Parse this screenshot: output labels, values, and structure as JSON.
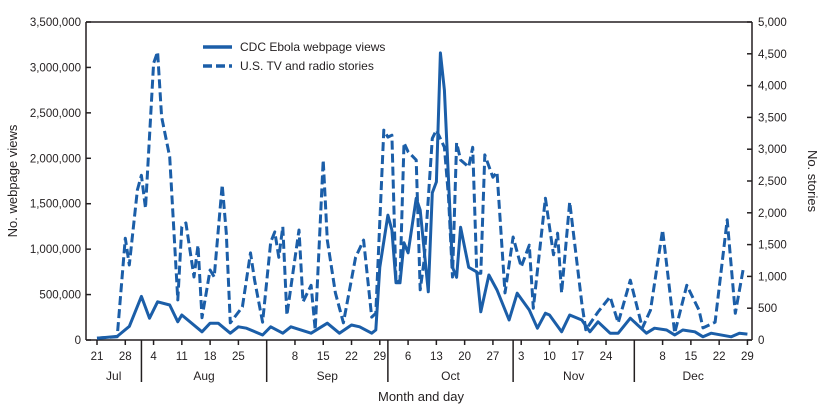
{
  "chart_data": {
    "type": "line",
    "xlabel": "Month and day",
    "ylabel_left": "No. webpage views",
    "ylabel_right": "No. stories",
    "ylim_left": [
      0,
      3500000
    ],
    "ylim_right": [
      0,
      5000
    ],
    "yticks_left": [
      "0",
      "500,000",
      "1,000,000",
      "1,500,000",
      "2,000,000",
      "2,500,000",
      "3,000,000",
      "3,500,000"
    ],
    "yticks_right": [
      "0",
      "500",
      "1,000",
      "1,500",
      "2,000",
      "2,500",
      "3,000",
      "3,500",
      "4,000",
      "4,500",
      "5,000"
    ],
    "xticks": [
      {
        "month": "Jul",
        "days": [
          "21",
          "28"
        ]
      },
      {
        "month": "Aug",
        "days": [
          "4",
          "11",
          "18",
          "25"
        ]
      },
      {
        "month": "Sep",
        "days": [
          "8",
          "15",
          "22",
          "29"
        ]
      },
      {
        "month": "Oct",
        "days": [
          "6",
          "13",
          "20",
          "27"
        ]
      },
      {
        "month": "Nov",
        "days": [
          "3",
          "10",
          "17",
          "24"
        ]
      },
      {
        "month": "Dec",
        "days": [
          "8",
          "15",
          "22",
          "29"
        ]
      }
    ],
    "grid": false,
    "legend_position": "top-left",
    "color": "#1b5ea8",
    "series": [
      {
        "name": "CDC Ebola webpage views",
        "axis": "left",
        "style": "solid",
        "points": [
          [
            "Jul 21",
            20000
          ],
          [
            "Jul 26",
            40000
          ],
          [
            "Jul 29",
            150000
          ],
          [
            "Aug 1",
            480000
          ],
          [
            "Aug 3",
            240000
          ],
          [
            "Aug 5",
            420000
          ],
          [
            "Aug 8",
            385000
          ],
          [
            "Aug 10",
            200000
          ],
          [
            "Aug 11",
            275000
          ],
          [
            "Aug 16",
            90000
          ],
          [
            "Aug 18",
            185000
          ],
          [
            "Aug 20",
            185000
          ],
          [
            "Aug 23",
            75000
          ],
          [
            "Aug 25",
            145000
          ],
          [
            "Aug 27",
            130000
          ],
          [
            "Aug 31",
            55000
          ],
          [
            "Sep 2",
            145000
          ],
          [
            "Sep 5",
            75000
          ],
          [
            "Sep 7",
            145000
          ],
          [
            "Sep 12",
            75000
          ],
          [
            "Sep 16",
            185000
          ],
          [
            "Sep 19",
            75000
          ],
          [
            "Sep 22",
            165000
          ],
          [
            "Sep 24",
            145000
          ],
          [
            "Sep 27",
            75000
          ],
          [
            "Sep 28",
            110000
          ],
          [
            "Sep 29",
            800000
          ],
          [
            "Oct 1",
            1375000
          ],
          [
            "Oct 2",
            1210000
          ],
          [
            "Oct 3",
            630000
          ],
          [
            "Oct 4",
            630000
          ],
          [
            "Oct 5",
            1070000
          ],
          [
            "Oct 6",
            960000
          ],
          [
            "Oct 8",
            1560000
          ],
          [
            "Oct 9",
            1430000
          ],
          [
            "Oct 11",
            530000
          ],
          [
            "Oct 12",
            1620000
          ],
          [
            "Oct 13",
            1740000
          ],
          [
            "Oct 14",
            3160000
          ],
          [
            "Oct 15",
            2750000
          ],
          [
            "Oct 17",
            800000
          ],
          [
            "Oct 18",
            690000
          ],
          [
            "Oct 19",
            1240000
          ],
          [
            "Oct 21",
            800000
          ],
          [
            "Oct 23",
            750000
          ],
          [
            "Oct 24",
            310000
          ],
          [
            "Oct 26",
            715000
          ],
          [
            "Oct 28",
            550000
          ],
          [
            "Oct 31",
            220000
          ],
          [
            "Nov 2",
            515000
          ],
          [
            "Nov 5",
            330000
          ],
          [
            "Nov 7",
            130000
          ],
          [
            "Nov 9",
            295000
          ],
          [
            "Nov 10",
            275000
          ],
          [
            "Nov 13",
            90000
          ],
          [
            "Nov 15",
            275000
          ],
          [
            "Nov 18",
            220000
          ],
          [
            "Nov 20",
            90000
          ],
          [
            "Nov 22",
            200000
          ],
          [
            "Nov 25",
            75000
          ],
          [
            "Nov 27",
            75000
          ],
          [
            "Nov 30",
            240000
          ],
          [
            "Dec 4",
            75000
          ],
          [
            "Dec 6",
            130000
          ],
          [
            "Dec 9",
            110000
          ],
          [
            "Dec 11",
            55000
          ],
          [
            "Dec 13",
            110000
          ],
          [
            "Dec 16",
            90000
          ],
          [
            "Dec 18",
            35000
          ],
          [
            "Dec 20",
            75000
          ],
          [
            "Dec 25",
            35000
          ],
          [
            "Dec 27",
            75000
          ],
          [
            "Dec 29",
            65000
          ]
        ]
      },
      {
        "name": "U.S. TV and radio stories",
        "axis": "right",
        "style": "dashed",
        "points": [
          [
            "Jul 21",
            30
          ],
          [
            "Jul 26",
            50
          ],
          [
            "Jul 28",
            1600
          ],
          [
            "Jul 29",
            1180
          ],
          [
            "Jul 31",
            2360
          ],
          [
            "Aug 1",
            2590
          ],
          [
            "Aug 2",
            2070
          ],
          [
            "Aug 4",
            4350
          ],
          [
            "Aug 5",
            4530
          ],
          [
            "Aug 6",
            3510
          ],
          [
            "Aug 8",
            2880
          ],
          [
            "Aug 10",
            630
          ],
          [
            "Aug 11",
            1780
          ],
          [
            "Aug 12",
            1840
          ],
          [
            "Aug 14",
            990
          ],
          [
            "Aug 15",
            1490
          ],
          [
            "Aug 16",
            350
          ],
          [
            "Aug 18",
            1100
          ],
          [
            "Aug 19",
            990
          ],
          [
            "Aug 21",
            2440
          ],
          [
            "Aug 22",
            1680
          ],
          [
            "Aug 23",
            270
          ],
          [
            "Aug 26",
            520
          ],
          [
            "Aug 28",
            1370
          ],
          [
            "Aug 29",
            940
          ],
          [
            "Aug 31",
            280
          ],
          [
            "Sep 2",
            1540
          ],
          [
            "Sep 3",
            1700
          ],
          [
            "Sep 4",
            1300
          ],
          [
            "Sep 5",
            1780
          ],
          [
            "Sep 6",
            390
          ],
          [
            "Sep 9",
            1730
          ],
          [
            "Sep 10",
            600
          ],
          [
            "Sep 12",
            860
          ],
          [
            "Sep 13",
            160
          ],
          [
            "Sep 15",
            2830
          ],
          [
            "Sep 16",
            1570
          ],
          [
            "Sep 18",
            740
          ],
          [
            "Sep 20",
            270
          ],
          [
            "Sep 23",
            1300
          ],
          [
            "Sep 25",
            1570
          ],
          [
            "Sep 27",
            360
          ],
          [
            "Sep 28",
            420
          ],
          [
            "Sep 30",
            3300
          ],
          [
            "Oct 1",
            3190
          ],
          [
            "Oct 2",
            3220
          ],
          [
            "Oct 3",
            900
          ],
          [
            "Oct 4",
            940
          ],
          [
            "Oct 5",
            3100
          ],
          [
            "Oct 6",
            2960
          ],
          [
            "Oct 8",
            2830
          ],
          [
            "Oct 9",
            790
          ],
          [
            "Oct 10",
            1260
          ],
          [
            "Oct 12",
            3170
          ],
          [
            "Oct 13",
            3300
          ],
          [
            "Oct 15",
            3030
          ],
          [
            "Oct 16",
            2250
          ],
          [
            "Oct 17",
            990
          ],
          [
            "Oct 18",
            3100
          ],
          [
            "Oct 19",
            2830
          ],
          [
            "Oct 21",
            2720
          ],
          [
            "Oct 22",
            3030
          ],
          [
            "Oct 23",
            1050
          ],
          [
            "Oct 24",
            1050
          ],
          [
            "Oct 25",
            2910
          ],
          [
            "Oct 27",
            2560
          ],
          [
            "Oct 28",
            2640
          ],
          [
            "Oct 30",
            740
          ],
          [
            "Nov 1",
            1620
          ],
          [
            "Nov 3",
            1150
          ],
          [
            "Nov 5",
            1490
          ],
          [
            "Nov 6",
            500
          ],
          [
            "Nov 9",
            2230
          ],
          [
            "Nov 11",
            1340
          ],
          [
            "Nov 12",
            1680
          ],
          [
            "Nov 13",
            740
          ],
          [
            "Nov 15",
            2170
          ],
          [
            "Nov 18",
            580
          ],
          [
            "Nov 19",
            160
          ],
          [
            "Nov 22",
            440
          ],
          [
            "Nov 25",
            680
          ],
          [
            "Nov 27",
            270
          ],
          [
            "Nov 30",
            940
          ],
          [
            "Dec 3",
            190
          ],
          [
            "Dec 5",
            470
          ],
          [
            "Dec 8",
            1730
          ],
          [
            "Dec 11",
            110
          ],
          [
            "Dec 14",
            860
          ],
          [
            "Dec 17",
            470
          ],
          [
            "Dec 18",
            190
          ],
          [
            "Dec 21",
            280
          ],
          [
            "Dec 24",
            1890
          ],
          [
            "Dec 26",
            420
          ],
          [
            "Dec 28",
            1130
          ]
        ]
      }
    ]
  }
}
